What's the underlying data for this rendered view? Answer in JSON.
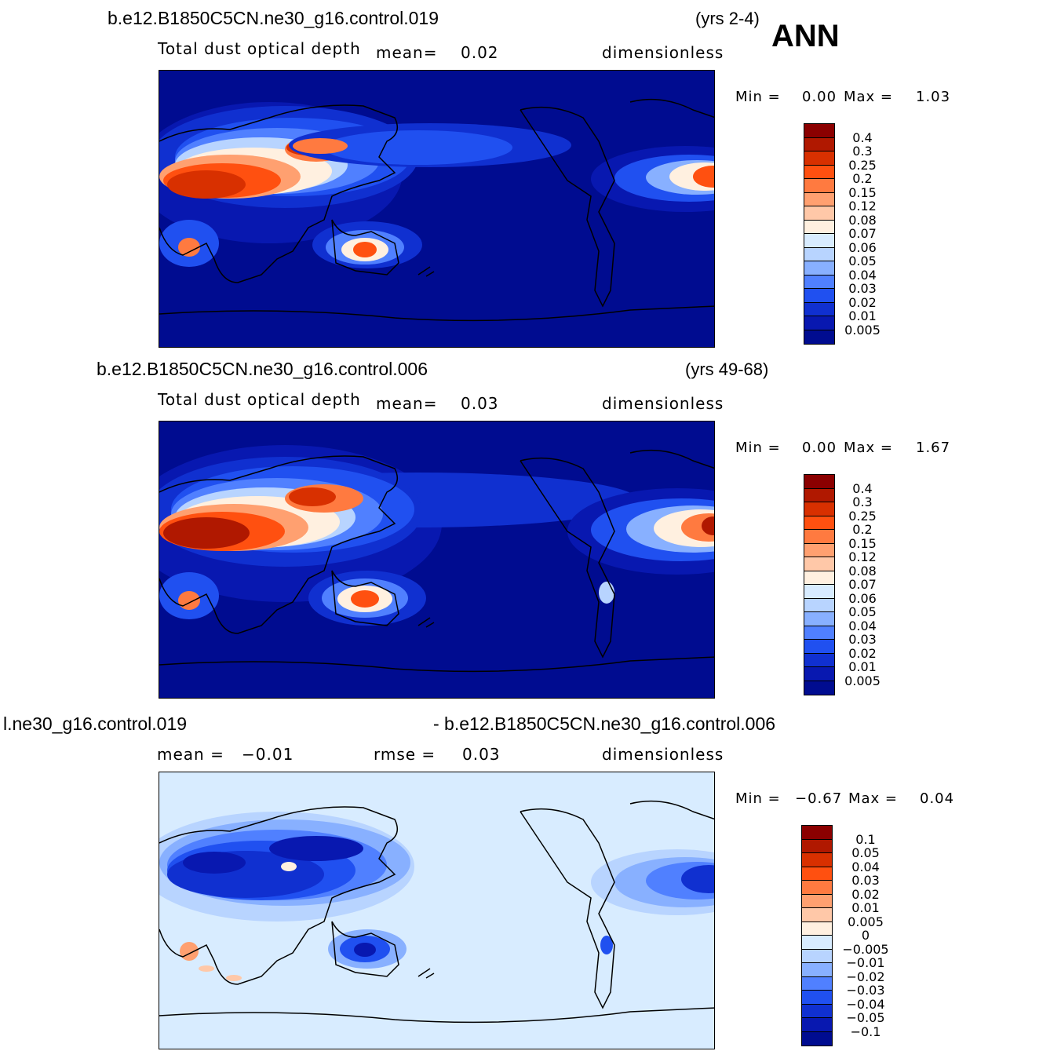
{
  "panels": [
    {
      "case": "b.e12.B1850C5CN.ne30_g16.control.019",
      "years": "(yrs 2-4)",
      "season": "ANN",
      "variable": "Total dust optical depth",
      "stat_label": "mean=",
      "stat_value": "0.02",
      "units": "dimensionless",
      "min_label": "Min =",
      "min_value": "0.00",
      "max_label": "Max =",
      "max_value": "1.03",
      "colorbar_labels": [
        "0.4",
        "0.3",
        "0.25",
        "0.2",
        "0.15",
        "0.12",
        "0.08",
        "0.07",
        "0.06",
        "0.05",
        "0.04",
        "0.03",
        "0.02",
        "0.01",
        "0.005"
      ],
      "colorbar_colors": [
        "#8b0000",
        "#b01800",
        "#d83000",
        "#ff5010",
        "#ff7a40",
        "#ffa070",
        "#ffc8a8",
        "#fff0e0",
        "#d8ecff",
        "#b8d4ff",
        "#88b0ff",
        "#5080ff",
        "#2050f0",
        "#1030d0",
        "#0818b0",
        "#000c90"
      ]
    },
    {
      "case": "b.e12.B1850C5CN.ne30_g16.control.006",
      "years": "(yrs 49-68)",
      "variable": "Total dust optical depth",
      "stat_label": "mean=",
      "stat_value": "0.03",
      "units": "dimensionless",
      "min_label": "Min =",
      "min_value": "0.00",
      "max_label": "Max =",
      "max_value": "1.67",
      "colorbar_labels": [
        "0.4",
        "0.3",
        "0.25",
        "0.2",
        "0.15",
        "0.12",
        "0.08",
        "0.07",
        "0.06",
        "0.05",
        "0.04",
        "0.03",
        "0.02",
        "0.01",
        "0.005"
      ],
      "colorbar_colors": [
        "#8b0000",
        "#b01800",
        "#d83000",
        "#ff5010",
        "#ff7a40",
        "#ffa070",
        "#ffc8a8",
        "#fff0e0",
        "#d8ecff",
        "#b8d4ff",
        "#88b0ff",
        "#5080ff",
        "#2050f0",
        "#1030d0",
        "#0818b0",
        "#000c90"
      ]
    },
    {
      "case_left": "l.ne30_g16.control.019",
      "case_right": "- b.e12.B1850C5CN.ne30_g16.control.006",
      "mean_label": "mean =",
      "mean_value": "−0.01",
      "rmse_label": "rmse =",
      "rmse_value": "0.03",
      "units": "dimensionless",
      "min_label": "Min =",
      "min_value": "−0.67",
      "max_label": "Max =",
      "max_value": "0.04",
      "colorbar_labels": [
        "0.1",
        "0.05",
        "0.04",
        "0.03",
        "0.02",
        "0.01",
        "0.005",
        "0",
        "−0.005",
        "−0.01",
        "−0.02",
        "−0.03",
        "−0.04",
        "−0.05",
        "−0.1"
      ],
      "colorbar_colors": [
        "#8b0000",
        "#b01800",
        "#d83000",
        "#ff5010",
        "#ff7a40",
        "#ffa070",
        "#ffc8a8",
        "#fff0e0",
        "#d8ecff",
        "#b8d4ff",
        "#88b0ff",
        "#5080ff",
        "#2050f0",
        "#1030d0",
        "#0818b0",
        "#000c90"
      ]
    }
  ],
  "colors": {
    "abs_background": "#000c90",
    "diff_background": "#d8ecff"
  }
}
